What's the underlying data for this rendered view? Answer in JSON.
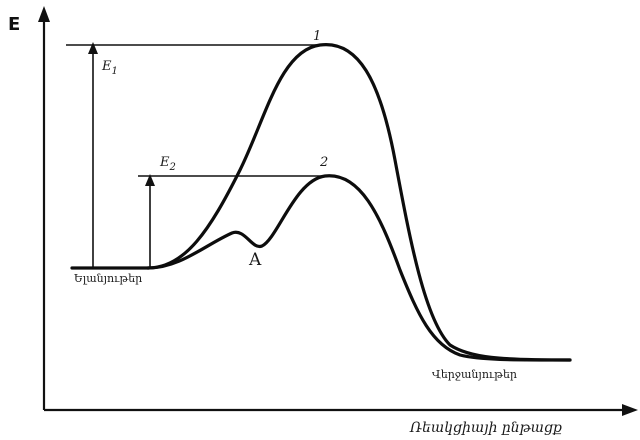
{
  "diagram": {
    "axis_y_label": "E",
    "axis_x_label": "Ռեակցիայի ընթացք",
    "energy_labels": {
      "e1_main": "E",
      "e1_sub": "1",
      "e2_main": "E",
      "e2_sub": "2"
    },
    "curve_labels": {
      "curve1": "1",
      "curve2": "2"
    },
    "intermediate_label": "A",
    "reactants_label": "Ելանյութեր",
    "products_label": "Վերջանյութեր"
  }
}
